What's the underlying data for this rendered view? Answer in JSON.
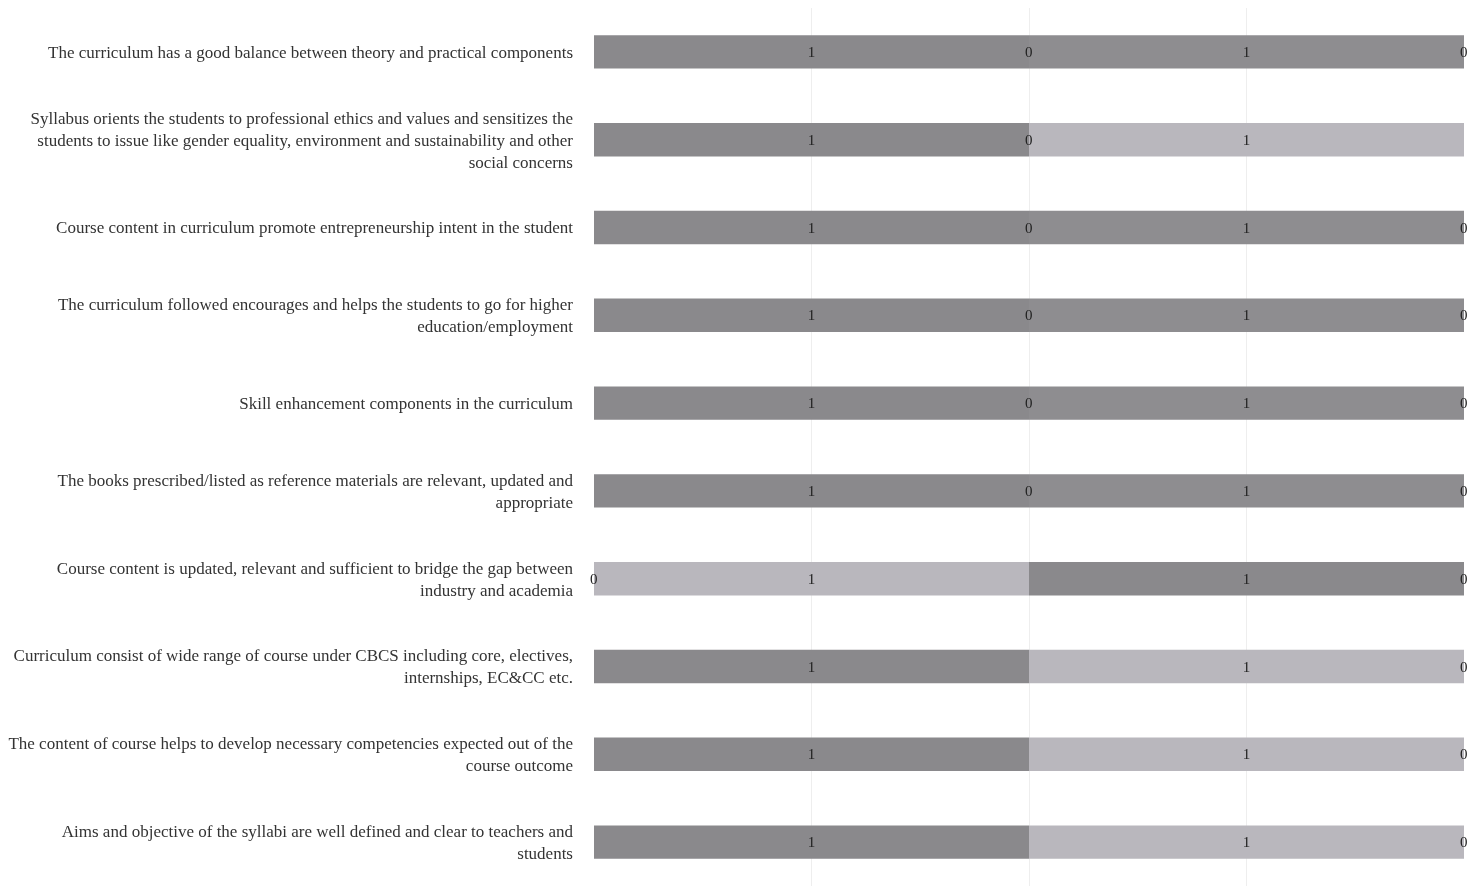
{
  "chart_data": {
    "type": "bar",
    "orientation": "horizontal",
    "stacked": true,
    "data_labels": true,
    "grid": "x",
    "tick_labels": "y",
    "categories": [
      "The curriculum has a good balance between theory and practical components",
      "Syllabus orients the students to professional ethics and values and sensitizes the students to issue like gender equality, environment and sustainability and other social concerns",
      "Course content in curriculum promote entrepreneurship intent in the student",
      "The curriculum followed encourages and helps the students to go for higher education/employment",
      "Skill enhancement components in the curriculum",
      "The books prescribed/listed as reference materials are relevant, updated and appropriate",
      "Course content is updated, relevant and sufficient to bridge the gap between industry and academia",
      "Curriculum consist of wide range of course under CBCS including core, electives, internships, EC&CC etc.",
      "The content of course helps to develop necessary competencies expected out of the course outcome",
      "Aims and objective of the syllabi are well defined and clear to teachers and students"
    ],
    "xlim": [
      0,
      2
    ],
    "xticks": [
      {
        "value": 0.5,
        "label": null
      },
      {
        "value": 1,
        "label": null
      },
      {
        "value": 1.5,
        "label": null
      }
    ],
    "series": [
      {
        "colors": [
          "#8a898c",
          "#8a898c",
          "#8a898c",
          "#8a898c",
          "#8a898c",
          "#8a898c",
          "#b9b7bd",
          "#8a898c",
          "#8a898c",
          "#8a898c"
        ],
        "values": [
          1,
          1,
          1,
          1,
          1,
          1,
          1,
          1,
          1,
          1
        ]
      },
      {
        "colors": [
          "#8e8d90",
          "#b9b7bd",
          "#8e8d90",
          "#8e8d90",
          "#8e8d90",
          "#8e8d90",
          "#8a898c",
          "#b9b7bd",
          "#b9b7bd",
          "#b9b7bd"
        ],
        "values": [
          1,
          1,
          1,
          1,
          1,
          1,
          1,
          1,
          1,
          1
        ]
      }
    ],
    "annotations": [
      {
        "text": "0",
        "x": 1,
        "y": "The curriculum has a good balance between theory and practical components"
      },
      {
        "text": "0",
        "x": 2,
        "y": "The curriculum has a good balance between theory and practical components"
      },
      {
        "text": "0",
        "x": 1,
        "y": "Syllabus orients the students to professional ethics and values and sensitizes the students to issue like gender equality, environment and sustainability and other social concerns"
      },
      {
        "text": "0",
        "x": 1,
        "y": "Course content in curriculum promote entrepreneurship intent in the student"
      },
      {
        "text": "0",
        "x": 2,
        "y": "Course content in curriculum promote entrepreneurship intent in the student"
      },
      {
        "text": "0",
        "x": 1,
        "y": "The curriculum followed encourages and helps the students to go for higher education/employment"
      },
      {
        "text": "0",
        "x": 2,
        "y": "The curriculum followed encourages and helps the students to go for higher education/employment"
      },
      {
        "text": "0",
        "x": 1,
        "y": "Skill enhancement components in the curriculum"
      },
      {
        "text": "0",
        "x": 2,
        "y": "Skill enhancement components in the curriculum"
      },
      {
        "text": "0",
        "x": 1,
        "y": "The books prescribed/listed as reference materials are relevant, updated and appropriate"
      },
      {
        "text": "0",
        "x": 2,
        "y": "The books prescribed/listed as reference materials are relevant, updated and appropriate"
      },
      {
        "text": "0",
        "x": 0,
        "y": "Course content is updated, relevant and sufficient to bridge the gap between industry and academia"
      },
      {
        "text": "0",
        "x": 2,
        "y": "Course content is updated, relevant and sufficient to bridge the gap between industry and academia"
      },
      {
        "text": "0",
        "x": 2,
        "y": "Curriculum consist of wide range of course under CBCS including core, electives, internships, EC&CC etc."
      },
      {
        "text": "0",
        "x": 2,
        "y": "The content of course helps to develop necessary competencies expected out of the course outcome"
      },
      {
        "text": "0",
        "x": 2,
        "y": "Aims and objective of the syllabi are well defined and clear to teachers and students"
      }
    ]
  }
}
